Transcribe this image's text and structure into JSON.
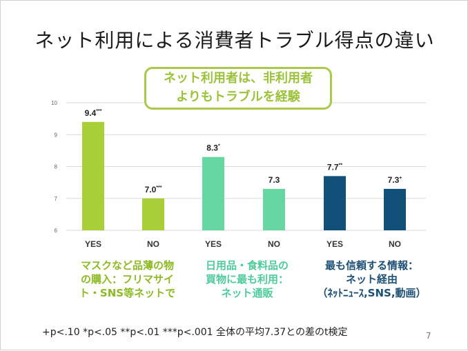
{
  "slide": {
    "title": "ネット利用による消費者トラブル得点の違い",
    "callout_line1": "ネット利用者は、非利用者",
    "callout_line2": "よりもトラブルを経験",
    "footnote": "+p<.10 *p<.05 **p<.01 ***p<.001 全体の平均7.37との差のt検定",
    "page_number": "7"
  },
  "group_labels": [
    {
      "lines": [
        "マスクなど品薄の物",
        "の購入：フリマサイ",
        "ト・SNS等ネットで"
      ]
    },
    {
      "lines": [
        "日用品・食料品の",
        "買物に最も利用：",
        "ネット通販"
      ]
    },
    {
      "lines": [
        "最も信頼する情報：",
        "ネット経由",
        "（ﾈｯﾄﾆｭｰｽ,SNS,動画）"
      ]
    }
  ],
  "chart_data": {
    "type": "bar",
    "categories": [
      "YES",
      "NO",
      "YES",
      "NO",
      "YES",
      "NO"
    ],
    "values": [
      9.4,
      7.0,
      8.3,
      7.3,
      7.7,
      7.3
    ],
    "value_labels": [
      "9.4",
      "7.0",
      "8.3",
      "7.3",
      "7.7",
      "7.3"
    ],
    "significance": [
      "***",
      "***",
      "*",
      "",
      "**",
      "+"
    ],
    "bar_colors": [
      "#a9cf38",
      "#a9cf38",
      "#66d6a3",
      "#66d6a3",
      "#115078",
      "#115078"
    ],
    "ylim": [
      6,
      10
    ],
    "yticks": [
      "6",
      "7",
      "8",
      "9",
      "10"
    ],
    "grid": true,
    "title": "",
    "xlabel": "",
    "ylabel": ""
  }
}
